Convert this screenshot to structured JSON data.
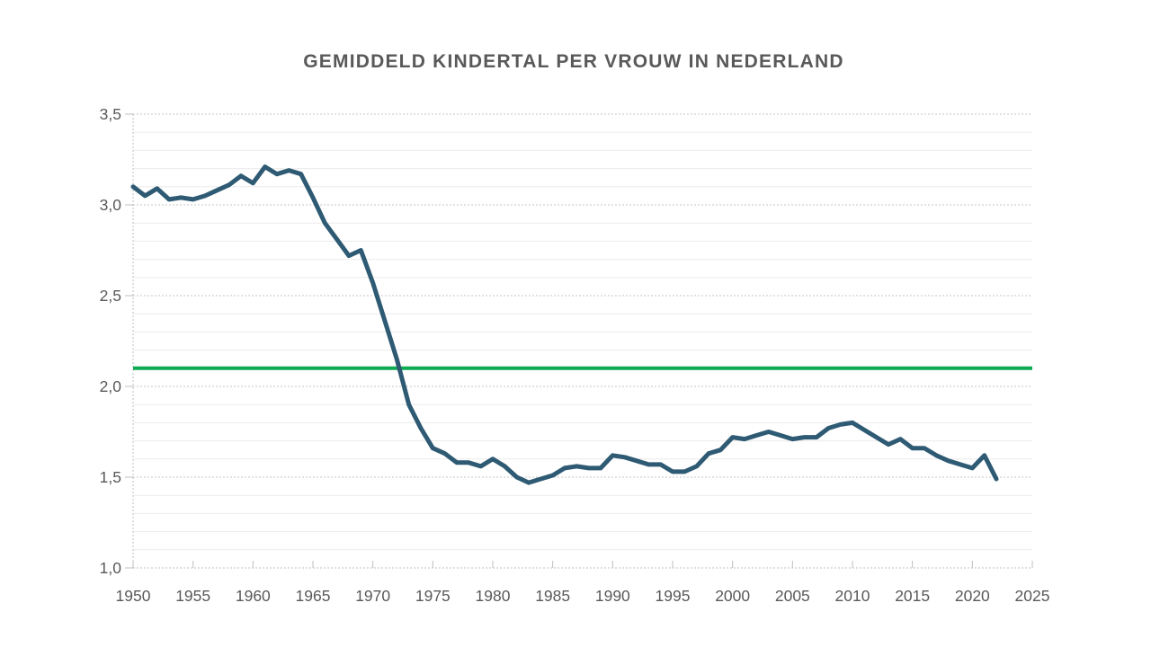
{
  "page": {
    "background": "#FFFFFF"
  },
  "chart_data": {
    "type": "line",
    "title": "GEMIDDELD KINDERTAL PER VROUW IN NEDERLAND",
    "xlabel": "",
    "ylabel": "",
    "xlim": [
      1950,
      2025
    ],
    "ylim": [
      1.0,
      3.5
    ],
    "grid": "horizontal",
    "legend": "none",
    "minor_grid_step": 0.1,
    "label_color": "#595959",
    "axis_color": "#BFBFBF",
    "major_grid_color": "#C6C6C6",
    "minor_grid_color": "#ECECEC",
    "x_ticks": [
      1950,
      1955,
      1960,
      1965,
      1970,
      1975,
      1980,
      1985,
      1990,
      1995,
      2000,
      2005,
      2010,
      2015,
      2020,
      2025
    ],
    "x_tick_labels": [
      "1950",
      "1955",
      "1960",
      "1965",
      "1970",
      "1975",
      "1980",
      "1985",
      "1990",
      "1995",
      "2000",
      "2005",
      "2010",
      "2015",
      "2020",
      "2025"
    ],
    "y_ticks": [
      {
        "value": 1.0,
        "label": "1,0"
      },
      {
        "value": 1.5,
        "label": "1,5"
      },
      {
        "value": 2.0,
        "label": "2,0"
      },
      {
        "value": 2.5,
        "label": "2,5"
      },
      {
        "value": 3.0,
        "label": "3,0"
      },
      {
        "value": 3.5,
        "label": "3,5"
      }
    ],
    "reference_line": {
      "value": 2.1,
      "color": "#0CAA52"
    },
    "x": [
      1950,
      1951,
      1952,
      1953,
      1954,
      1955,
      1956,
      1957,
      1958,
      1959,
      1960,
      1961,
      1962,
      1963,
      1964,
      1965,
      1966,
      1967,
      1968,
      1969,
      1970,
      1971,
      1972,
      1973,
      1974,
      1975,
      1976,
      1977,
      1978,
      1979,
      1980,
      1981,
      1982,
      1983,
      1984,
      1985,
      1986,
      1987,
      1988,
      1989,
      1990,
      1991,
      1992,
      1993,
      1994,
      1995,
      1996,
      1997,
      1998,
      1999,
      2000,
      2001,
      2002,
      2003,
      2004,
      2005,
      2006,
      2007,
      2008,
      2009,
      2010,
      2011,
      2012,
      2013,
      2014,
      2015,
      2016,
      2017,
      2018,
      2019,
      2020,
      2021,
      2022
    ],
    "series": [
      {
        "color": "#2E5A73",
        "values": [
          3.1,
          3.05,
          3.09,
          3.03,
          3.04,
          3.03,
          3.05,
          3.08,
          3.11,
          3.16,
          3.12,
          3.21,
          3.17,
          3.19,
          3.17,
          3.04,
          2.9,
          2.81,
          2.72,
          2.75,
          2.57,
          2.36,
          2.15,
          1.9,
          1.77,
          1.66,
          1.63,
          1.58,
          1.58,
          1.56,
          1.6,
          1.56,
          1.5,
          1.47,
          1.49,
          1.51,
          1.55,
          1.56,
          1.55,
          1.55,
          1.62,
          1.61,
          1.59,
          1.57,
          1.57,
          1.53,
          1.53,
          1.56,
          1.63,
          1.65,
          1.72,
          1.71,
          1.73,
          1.75,
          1.73,
          1.71,
          1.72,
          1.72,
          1.77,
          1.79,
          1.8,
          1.76,
          1.72,
          1.68,
          1.71,
          1.66,
          1.66,
          1.62,
          1.59,
          1.57,
          1.55,
          1.62,
          1.49
        ]
      }
    ]
  }
}
